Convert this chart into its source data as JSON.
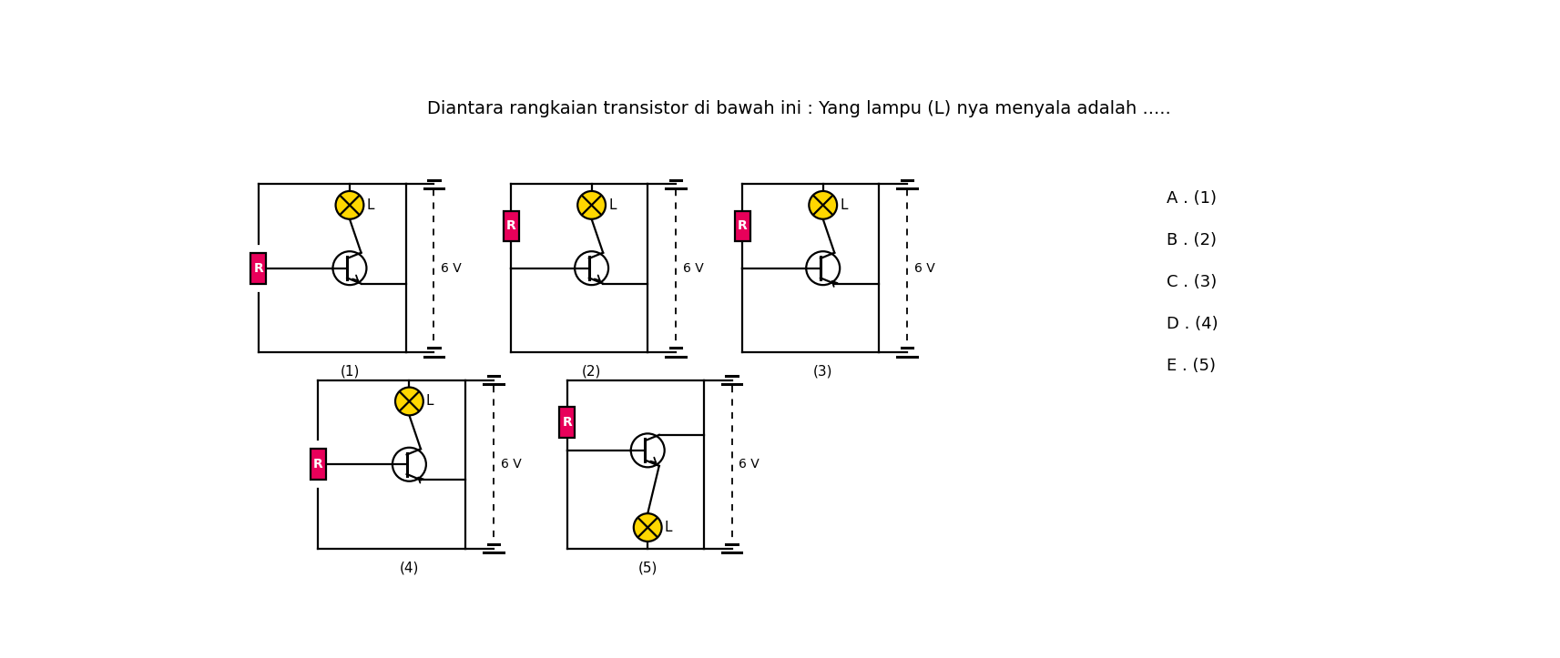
{
  "title": "Diantara rangkaian transistor di bawah ini : Yang lampu (L) nya menyala adalah .....",
  "title_fontsize": 14,
  "bg_color": "#ffffff",
  "R_color": "#e8005a",
  "lamp_color": "#FFD700",
  "answer_options": [
    "A . (1)",
    "B . (2)",
    "C . (3)",
    "D . (4)",
    "E . (5)"
  ],
  "circuit_labels": [
    "(1)",
    "(2)",
    "(3)",
    "(4)",
    "(5)"
  ],
  "voltage_label": "6 V",
  "lw": 1.6
}
